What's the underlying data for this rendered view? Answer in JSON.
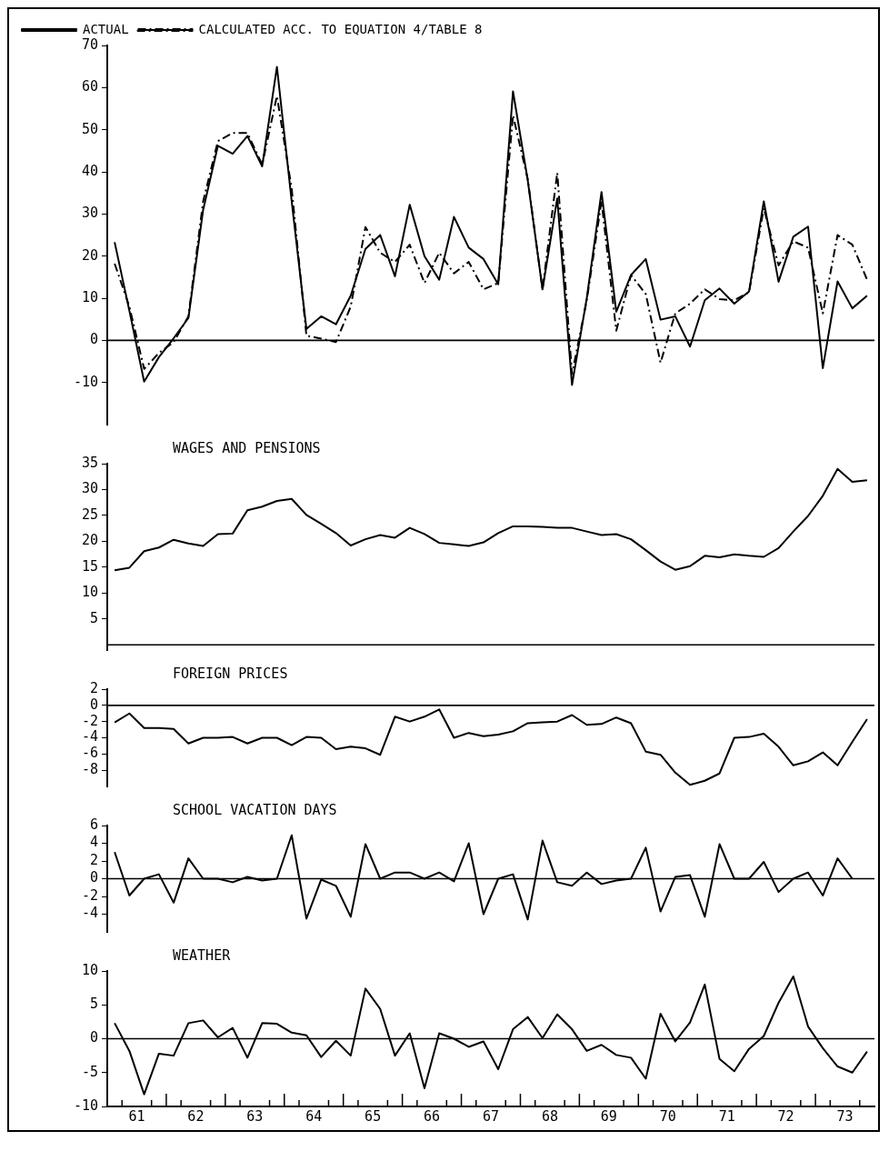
{
  "chart_data": [
    {
      "type": "line",
      "legend": "top left",
      "marker": "none",
      "tick_labels": "y",
      "xlim": [
        60.5,
        73.5
      ],
      "xticks": [
        61,
        62,
        63,
        64,
        65,
        66,
        67,
        68,
        69,
        70,
        71,
        72,
        73
      ],
      "ylim": [
        -20,
        70
      ],
      "yticks": [
        -10,
        0,
        10,
        20,
        30,
        40,
        50,
        60,
        70
      ],
      "x": [
        60.625,
        60.875,
        61.125,
        61.375,
        61.625,
        61.875,
        62.125,
        62.375,
        62.625,
        62.875,
        63.125,
        63.375,
        63.625,
        63.875,
        64.125,
        64.375,
        64.625,
        64.875,
        65.125,
        65.375,
        65.625,
        65.875,
        66.125,
        66.375,
        66.625,
        66.875,
        67.125,
        67.375,
        67.625,
        67.875,
        68.125,
        68.375,
        68.625,
        68.875,
        69.125,
        69.375,
        69.625,
        69.875,
        70.125,
        70.375,
        70.625,
        70.875,
        71.125,
        71.375,
        71.625,
        71.875,
        72.125,
        72.375,
        72.625,
        72.875,
        73.125,
        73.375
      ],
      "ref_lines": [
        {
          "axis": "y",
          "value": 0
        }
      ],
      "series": [
        {
          "name": "ACTUAL",
          "color": "#000000",
          "line_style": "solid",
          "values": [
            23.3,
            7,
            -9.8,
            -4,
            0.5,
            5.3,
            31,
            46.2,
            44.3,
            48.5,
            41.3,
            64.9,
            33,
            2.7,
            5.7,
            3.8,
            10.6,
            21.7,
            25,
            15.2,
            32.2,
            20,
            14.4,
            29.3,
            22,
            19.3,
            13.3,
            59.1,
            38,
            12.1,
            33.7,
            -10.6,
            10,
            35.2,
            6.8,
            15.5,
            19.3,
            4.9,
            5.7,
            -1.5,
            9.5,
            12.3,
            8.7,
            11.6,
            33,
            13.9,
            24.6,
            27,
            -6.6,
            14,
            7.6,
            10.6
          ]
        },
        {
          "name": "CALCULATED ACC. TO EQUATION 4/TABLE 8",
          "color": "#000000",
          "line_style": "dashed",
          "values": [
            18.2,
            8,
            -6.8,
            -3,
            -0.4,
            5.7,
            33,
            47.3,
            49.2,
            49.2,
            41.7,
            58,
            36,
            1.1,
            0.4,
            -0.4,
            8,
            26.9,
            20.8,
            18.6,
            22.7,
            13.6,
            20.8,
            15.9,
            18.6,
            12.1,
            13.6,
            53.4,
            38.3,
            12.1,
            39.8,
            -8,
            9.5,
            33,
            2.3,
            15.5,
            11,
            -5.3,
            6.4,
            8.7,
            12.1,
            9.8,
            9.5,
            11.4,
            31.4,
            17.8,
            23.5,
            22,
            6.4,
            25,
            22.7,
            14.4
          ]
        }
      ]
    },
    {
      "type": "line",
      "title": "WAGES AND PENSIONS",
      "marker": "none",
      "tick_labels": "y",
      "xlim": [
        60.5,
        73.5
      ],
      "xticks": [
        61,
        62,
        63,
        64,
        65,
        66,
        67,
        68,
        69,
        70,
        71,
        72,
        73
      ],
      "ylim": [
        -1,
        35
      ],
      "yticks": [
        5,
        10,
        15,
        20,
        25,
        30,
        35
      ],
      "x": [
        60.625,
        60.875,
        61.125,
        61.375,
        61.625,
        61.875,
        62.125,
        62.375,
        62.625,
        62.875,
        63.125,
        63.375,
        63.625,
        63.875,
        64.125,
        64.375,
        64.625,
        64.875,
        65.125,
        65.375,
        65.625,
        65.875,
        66.125,
        66.375,
        66.625,
        66.875,
        67.125,
        67.375,
        67.625,
        67.875,
        68.125,
        68.375,
        68.625,
        68.875,
        69.125,
        69.375,
        69.625,
        69.875,
        70.125,
        70.375,
        70.625,
        70.875,
        71.125,
        71.375,
        71.625,
        71.875,
        72.125,
        72.375,
        72.625,
        72.875,
        73.125,
        73.375
      ],
      "ref_lines": [
        {
          "axis": "y",
          "value": 0
        }
      ],
      "series": [
        {
          "color": "#000000",
          "values": [
            14.4,
            14.9,
            18.1,
            18.8,
            20.3,
            19.6,
            19.1,
            21.4,
            21.5,
            26,
            26.7,
            27.8,
            28.2,
            25.1,
            23.4,
            21.6,
            19.2,
            20.4,
            21.2,
            20.7,
            22.6,
            21.4,
            19.7,
            19.4,
            19.1,
            19.8,
            21.6,
            22.9,
            22.9,
            22.8,
            22.6,
            22.6,
            21.9,
            21.2,
            21.4,
            20.4,
            18.3,
            16.1,
            14.5,
            15.2,
            17.2,
            16.9,
            17.5,
            17.2,
            17,
            18.7,
            21.9,
            24.9,
            28.8,
            34,
            31.5,
            31.8
          ]
        }
      ]
    },
    {
      "type": "line",
      "title": "FOREIGN PRICES",
      "marker": "none",
      "tick_labels": "y",
      "xlim": [
        60.5,
        73.5
      ],
      "xticks": [
        61,
        62,
        63,
        64,
        65,
        66,
        67,
        68,
        69,
        70,
        71,
        72,
        73
      ],
      "ylim": [
        -10,
        2
      ],
      "yticks": [
        -8,
        -6,
        -4,
        -2,
        0,
        2
      ],
      "x": [
        60.625,
        60.875,
        61.125,
        61.375,
        61.625,
        61.875,
        62.125,
        62.375,
        62.625,
        62.875,
        63.125,
        63.375,
        63.625,
        63.875,
        64.125,
        64.375,
        64.625,
        64.875,
        65.125,
        65.375,
        65.625,
        65.875,
        66.125,
        66.375,
        66.625,
        66.875,
        67.125,
        67.375,
        67.625,
        67.875,
        68.125,
        68.375,
        68.625,
        68.875,
        69.125,
        69.375,
        69.625,
        69.875,
        70.125,
        70.375,
        70.625,
        70.875,
        71.125,
        71.375,
        71.625,
        71.875,
        72.125,
        72.375,
        72.625,
        72.875,
        73.125,
        73.375
      ],
      "ref_lines": [
        {
          "axis": "y",
          "value": 0
        }
      ],
      "series": [
        {
          "color": "#000000",
          "values": [
            -2.1,
            -1,
            -2.8,
            -2.8,
            -2.9,
            -4.7,
            -4,
            -4,
            -3.9,
            -4.7,
            -4,
            -4,
            -4.9,
            -3.9,
            -4,
            -5.4,
            -5.1,
            -5.3,
            -6.1,
            -1.4,
            -2,
            -1.4,
            -0.5,
            -4,
            -3.4,
            -3.8,
            -3.6,
            -3.2,
            -2.2,
            -2.1,
            -2,
            -1.2,
            -2.4,
            -2.3,
            -1.5,
            -2.2,
            -5.7,
            -6.1,
            -8.3,
            -9.8,
            -9.3,
            -8.4,
            -4,
            -3.9,
            -3.5,
            -5.1,
            -7.4,
            -6.9,
            -5.8,
            -7.4,
            -4.5,
            -1.7
          ]
        }
      ]
    },
    {
      "type": "line",
      "title": "SCHOOL VACATION DAYS",
      "marker": "none",
      "tick_labels": "y",
      "xlim": [
        60.5,
        73.5
      ],
      "xticks": [
        61,
        62,
        63,
        64,
        65,
        66,
        67,
        68,
        69,
        70,
        71,
        72,
        73
      ],
      "ylim": [
        -6,
        6
      ],
      "yticks": [
        -4,
        -2,
        0,
        2,
        4,
        6
      ],
      "ref_lines": [
        {
          "axis": "y",
          "value": 0
        }
      ],
      "series": [
        {
          "color": "#000000",
          "x": [
            60.625,
            60.875,
            61.125,
            61.375,
            61.625,
            61.875,
            62.125,
            62.375,
            62.625,
            62.875,
            63.125,
            63.375,
            63.625,
            63.875,
            64.125,
            64.375,
            64.625,
            64.875,
            65.125,
            65.375,
            65.625,
            65.875,
            66.125,
            66.375,
            66.625,
            66.875,
            67.125,
            67.375,
            67.625,
            67.875,
            68.125,
            68.375,
            68.625,
            68.875,
            69.125,
            69.375,
            69.625,
            69.875,
            70.125,
            70.375,
            70.625,
            70.875,
            71.125,
            71.375,
            71.625,
            71.875,
            72.125,
            72.375,
            72.625,
            72.875,
            73.125
          ],
          "values": [
            3,
            -1.9,
            0,
            0.5,
            -2.7,
            2.3,
            0,
            0,
            -0.4,
            0.2,
            -0.2,
            0,
            4.9,
            -4.5,
            -0.1,
            -0.8,
            -4.3,
            3.9,
            0,
            0.7,
            0.7,
            0,
            0.7,
            -0.3,
            4,
            -4,
            0,
            0.5,
            -4.6,
            4.3,
            -0.4,
            -0.8,
            0.7,
            -0.6,
            -0.2,
            0,
            3.5,
            -3.7,
            0.2,
            0.4,
            -4.3,
            3.9,
            0,
            0,
            1.9,
            -1.5,
            0,
            0.7,
            -1.9,
            2.3,
            0
          ]
        }
      ]
    },
    {
      "type": "line",
      "title": "WEATHER",
      "marker": "none",
      "xlim": [
        60.5,
        73.5
      ],
      "ylim": [
        -10,
        10
      ],
      "yticks": [
        -10,
        -5,
        0,
        5,
        10
      ],
      "xticks": [
        {
          "value": 60.75,
          "label": null
        },
        61,
        {
          "value": 61.25,
          "label": null
        },
        {
          "value": 61.5,
          "label": null
        },
        {
          "value": 61.75,
          "label": null
        },
        62,
        {
          "value": 62.25,
          "label": null
        },
        {
          "value": 62.5,
          "label": null
        },
        {
          "value": 62.75,
          "label": null
        },
        63,
        {
          "value": 63.25,
          "label": null
        },
        {
          "value": 63.5,
          "label": null
        },
        {
          "value": 63.75,
          "label": null
        },
        64,
        {
          "value": 64.25,
          "label": null
        },
        {
          "value": 64.5,
          "label": null
        },
        {
          "value": 64.75,
          "label": null
        },
        65,
        {
          "value": 65.25,
          "label": null
        },
        {
          "value": 65.5,
          "label": null
        },
        {
          "value": 65.75,
          "label": null
        },
        66,
        {
          "value": 66.25,
          "label": null
        },
        {
          "value": 66.5,
          "label": null
        },
        {
          "value": 66.75,
          "label": null
        },
        67,
        {
          "value": 67.25,
          "label": null
        },
        {
          "value": 67.5,
          "label": null
        },
        {
          "value": 67.75,
          "label": null
        },
        68,
        {
          "value": 68.25,
          "label": null
        },
        {
          "value": 68.5,
          "label": null
        },
        {
          "value": 68.75,
          "label": null
        },
        69,
        {
          "value": 69.25,
          "label": null
        },
        {
          "value": 69.5,
          "label": null
        },
        {
          "value": 69.75,
          "label": null
        },
        70,
        {
          "value": 70.25,
          "label": null
        },
        {
          "value": 70.5,
          "label": null
        },
        {
          "value": 70.75,
          "label": null
        },
        71,
        {
          "value": 71.25,
          "label": null
        },
        {
          "value": 71.5,
          "label": null
        },
        {
          "value": 71.75,
          "label": null
        },
        72,
        {
          "value": 72.25,
          "label": null
        },
        {
          "value": 72.5,
          "label": null
        },
        {
          "value": 72.75,
          "label": null
        },
        73,
        {
          "value": 73.25,
          "label": null
        }
      ],
      "x": [
        60.625,
        60.875,
        61.125,
        61.375,
        61.625,
        61.875,
        62.125,
        62.375,
        62.625,
        62.875,
        63.125,
        63.375,
        63.625,
        63.875,
        64.125,
        64.375,
        64.625,
        64.875,
        65.125,
        65.375,
        65.625,
        65.875,
        66.125,
        66.375,
        66.625,
        66.875,
        67.125,
        67.375,
        67.625,
        67.875,
        68.125,
        68.375,
        68.625,
        68.875,
        69.125,
        69.375,
        69.625,
        69.875,
        70.125,
        70.375,
        70.625,
        70.875,
        71.125,
        71.375,
        71.625,
        71.875,
        72.125,
        72.375,
        72.625,
        72.875,
        73.125,
        73.375
      ],
      "ref_lines": [
        {
          "axis": "y",
          "value": 0
        }
      ],
      "series": [
        {
          "color": "#000000",
          "values": [
            2.3,
            -1.8,
            -8.2,
            -2.2,
            -2.5,
            2.3,
            2.7,
            0.2,
            1.6,
            -2.8,
            2.3,
            2.2,
            0.9,
            0.5,
            -2.7,
            -0.3,
            -2.5,
            7.4,
            4.4,
            -2.5,
            0.8,
            -7.3,
            0.8,
            0,
            -1.2,
            -0.4,
            -4.5,
            1.4,
            3.2,
            0.1,
            3.6,
            1.4,
            -1.8,
            -0.9,
            -2.4,
            -2.8,
            -5.9,
            3.7,
            -0.4,
            2.4,
            8,
            -3,
            -4.8,
            -1.5,
            0.4,
            5.3,
            9.2,
            1.8,
            -1.4,
            -4.1,
            -5,
            -1.9
          ]
        }
      ]
    }
  ]
}
